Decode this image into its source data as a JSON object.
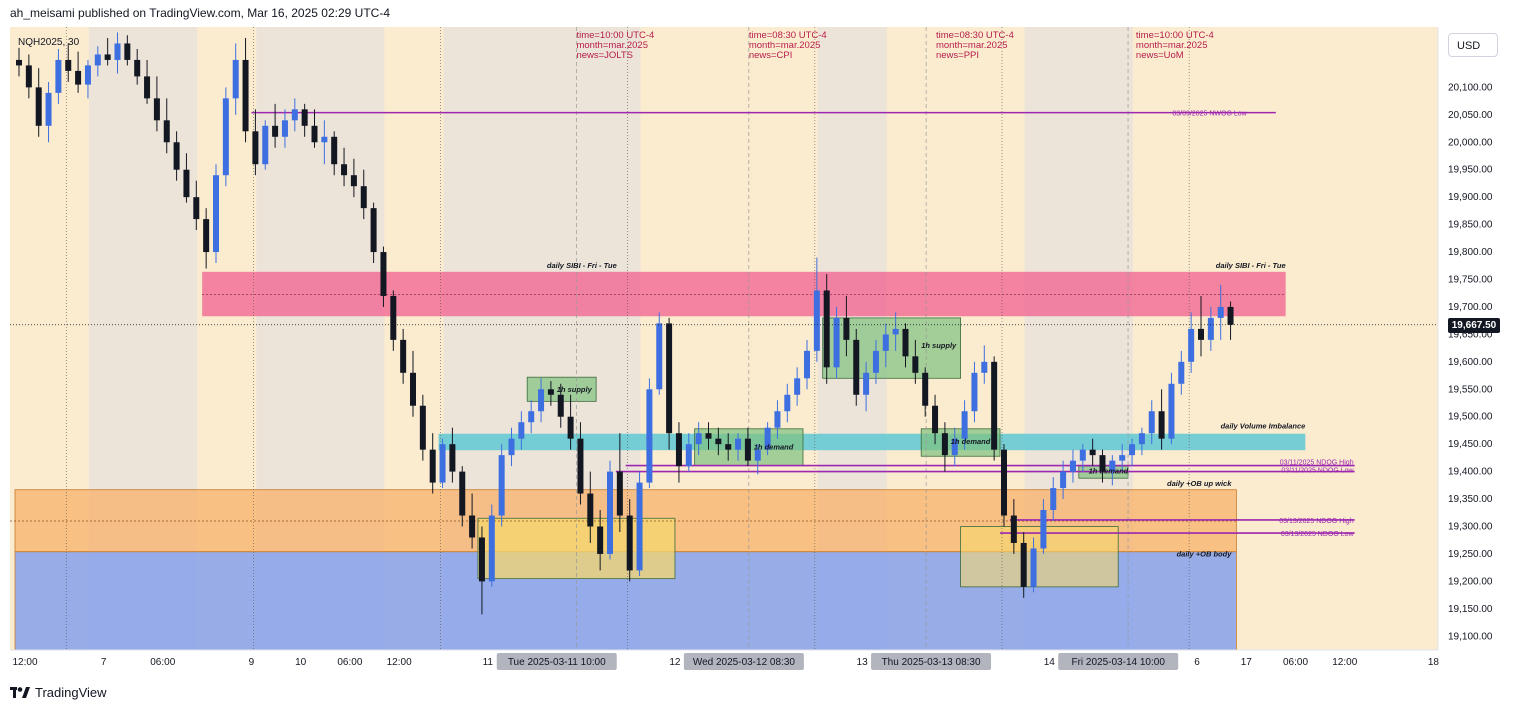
{
  "header": {
    "published": "ah_meisami published on TradingView.com, Mar 16, 2025 02:29 UTC-4"
  },
  "footer": {
    "brand": "TradingView"
  },
  "currency": "USD",
  "last_price": "19,667.50",
  "symbol": "NQH2025, 30",
  "colors": {
    "background": "#fbecd0",
    "weekend_shade": "#ebe3d9",
    "bull": "#3d6fe0",
    "bear": "#131722",
    "sibi": "#f0608f",
    "volume_imbalance": "#5ec8d3",
    "ob_wick": "#f7b26a",
    "ob_body": "#7f9ded",
    "supply_demand": "#7fc27f",
    "fvg_yellow": "#f5d76e",
    "news_text": "#b71c4b",
    "ndog": "#9c27b0"
  },
  "news": [
    {
      "time": "time=10:00 UTC-4",
      "month": "month=mar.2025",
      "news": "news=JOLTS"
    },
    {
      "time": "time=08:30 UTC-4",
      "month": "month=mar.2025",
      "news": "news=CPI"
    },
    {
      "time": "time=08:30 UTC-4",
      "month": "month=mar.2025",
      "news": "news=PPI"
    },
    {
      "time": "time=10:00 UTC-4",
      "month": "month=mar.2025",
      "news": "news=UoM"
    }
  ],
  "zone_labels": {
    "sibi_left": "daily SIBI - Fri - Tue",
    "sibi_right": "daily SIBI - Fri - Tue",
    "volume_imbalance": "daily Volume Imbalance",
    "ob_wick": "daily +OB up wick",
    "ob_body": "daily +OB body",
    "supply_1": "1h supply",
    "supply_2": "1h supply",
    "demand_1": "1h demand",
    "demand_2": "1h demand",
    "demand_3": "1h demand"
  },
  "level_labels": {
    "nwog_low": "03/09/2025 NWOG Low",
    "ndog_0311_high": "03/11/2025 NDOG High",
    "ndog_0311_low": "03/11/2025 NDOG Low",
    "ndog_0313_high": "03/13/2025 NDOG High",
    "ndog_0313_low": "03/13/2025 NDOG Low"
  },
  "chart_data": {
    "type": "candlestick",
    "symbol": "NQH2025",
    "interval": "30",
    "ylim": [
      19075,
      20210
    ],
    "y_ticks": [
      20100,
      20050,
      20000,
      19950,
      19900,
      19850,
      19800,
      19750,
      19700,
      19650,
      19600,
      19550,
      19500,
      19450,
      19400,
      19350,
      19300,
      19250,
      19200,
      19150,
      19100
    ],
    "y_tick_labels": [
      "20,100.00",
      "20,050.00",
      "20,000.00",
      "19,950.00",
      "19,900.00",
      "19,850.00",
      "19,800.00",
      "19,750.00",
      "19,700.00",
      "19,650.00",
      "19,600.00",
      "19,550.00",
      "19,500.00",
      "19,450.00",
      "19,400.00",
      "19,350.00",
      "19,300.00",
      "19,250.00",
      "19,200.00",
      "19,150.00",
      "19,100.00"
    ],
    "x_axis_labels": [
      {
        "label": "12:00",
        "t": 0
      },
      {
        "label": "7",
        "t": 9
      },
      {
        "label": "06:00",
        "t": 15
      },
      {
        "label": "9",
        "t": 24
      },
      {
        "label": "10",
        "t": 29
      },
      {
        "label": "06:00",
        "t": 34
      },
      {
        "label": "12:00",
        "t": 39
      },
      {
        "label": "11",
        "t": 48
      },
      {
        "label": "Tue 2025-03-11   10:00",
        "t": 55
      },
      {
        "label": "12",
        "t": 67
      },
      {
        "label": "Wed 2025-03-12   08:30",
        "t": 74
      },
      {
        "label": "13",
        "t": 86
      },
      {
        "label": "Thu 2025-03-13   08:30",
        "t": 93
      },
      {
        "label": "14",
        "t": 105
      },
      {
        "label": "Fri 2025-03-14   10:00",
        "t": 112
      },
      {
        "label": "6",
        "t": 120
      },
      {
        "label": "17",
        "t": 125
      },
      {
        "label": "06:00",
        "t": 130
      },
      {
        "label": "12:00",
        "t": 135
      },
      {
        "label": "18",
        "t": 144
      }
    ],
    "highlighted_dates": [
      "Tue 2025-03-11   10:00",
      "Wed 2025-03-12   08:30",
      "Thu 2025-03-13   08:30",
      "Fri 2025-03-14   10:00"
    ],
    "zones": [
      {
        "name": "sibi",
        "t0": 19,
        "t1": 129,
        "top": 19764,
        "bottom": 19683
      },
      {
        "name": "volume_imbalance",
        "t0": 43,
        "t1": 131,
        "top": 19469,
        "bottom": 19439
      },
      {
        "name": "ob_wick",
        "t0": 0,
        "t1": 124,
        "top": 19367,
        "bottom": 19254
      },
      {
        "name": "ob_body",
        "t0": 0,
        "t1": 124,
        "top": 19254,
        "bottom": 19075
      },
      {
        "name": "supply_1",
        "t0": 52,
        "t1": 59,
        "top": 19572,
        "bottom": 19528
      },
      {
        "name": "supply_2",
        "t0": 82,
        "t1": 96,
        "top": 19680,
        "bottom": 19570
      },
      {
        "name": "demand_1",
        "t0": 69,
        "t1": 80,
        "top": 19478,
        "bottom": 19411
      },
      {
        "name": "demand_2",
        "t0": 92,
        "t1": 100,
        "top": 19478,
        "bottom": 19428
      },
      {
        "name": "demand_3",
        "t0": 108,
        "t1": 113,
        "top": 19410,
        "bottom": 19388
      },
      {
        "name": "fvg_1",
        "t0": 47,
        "t1": 67,
        "top": 19315,
        "bottom": 19205
      },
      {
        "name": "fvg_2",
        "t0": 96,
        "t1": 112,
        "top": 19300,
        "bottom": 19190
      }
    ],
    "levels": [
      {
        "name": "nwog_low",
        "t0": 24,
        "t1": 128,
        "price": 20054
      },
      {
        "name": "ndog_0311_high",
        "t0": 62,
        "t1": 136,
        "price": 19411
      },
      {
        "name": "ndog_0311_low",
        "t0": 61,
        "t1": 136,
        "price": 19400
      },
      {
        "name": "ndog_0313_high",
        "t0": 101,
        "t1": 136,
        "price": 19312
      },
      {
        "name": "ndog_0313_low",
        "t0": 100,
        "t1": 136,
        "price": 19288
      }
    ],
    "current_price": 19667.5,
    "candles": [
      [
        20150,
        20172,
        20120,
        20140
      ],
      [
        20140,
        20160,
        20080,
        20100
      ],
      [
        20100,
        20135,
        20010,
        20030
      ],
      [
        20030,
        20110,
        20000,
        20090
      ],
      [
        20090,
        20170,
        20070,
        20150
      ],
      [
        20150,
        20180,
        20110,
        20130
      ],
      [
        20130,
        20165,
        20090,
        20105
      ],
      [
        20105,
        20150,
        20080,
        20140
      ],
      [
        20140,
        20175,
        20120,
        20160
      ],
      [
        20160,
        20190,
        20140,
        20150
      ],
      [
        20150,
        20200,
        20125,
        20180
      ],
      [
        20180,
        20195,
        20140,
        20150
      ],
      [
        20150,
        20170,
        20105,
        20120
      ],
      [
        20120,
        20150,
        20070,
        20080
      ],
      [
        20080,
        20120,
        20020,
        20040
      ],
      [
        20040,
        20080,
        19980,
        20000
      ],
      [
        20000,
        20020,
        19930,
        19950
      ],
      [
        19950,
        19980,
        19890,
        19900
      ],
      [
        19900,
        19930,
        19840,
        19860
      ],
      [
        19860,
        19880,
        19770,
        19800
      ],
      [
        19800,
        19960,
        19780,
        19940
      ],
      [
        19940,
        20100,
        19920,
        20080
      ],
      [
        20080,
        20180,
        20050,
        20150
      ],
      [
        20150,
        20190,
        20000,
        20020
      ],
      [
        20020,
        20060,
        19940,
        19960
      ],
      [
        19960,
        20040,
        19950,
        20030
      ],
      [
        20030,
        20070,
        19990,
        20010
      ],
      [
        20010,
        20060,
        19990,
        20040
      ],
      [
        20040,
        20080,
        20020,
        20060
      ],
      [
        20060,
        20070,
        20010,
        20030
      ],
      [
        20030,
        20060,
        19990,
        20000
      ],
      [
        20000,
        20040,
        19960,
        20010
      ],
      [
        20010,
        20020,
        19940,
        19960
      ],
      [
        19960,
        19990,
        19920,
        19940
      ],
      [
        19940,
        19970,
        19900,
        19920
      ],
      [
        19920,
        19950,
        19860,
        19880
      ],
      [
        19880,
        19890,
        19780,
        19800
      ],
      [
        19800,
        19810,
        19700,
        19720
      ],
      [
        19720,
        19730,
        19620,
        19640
      ],
      [
        19640,
        19660,
        19560,
        19580
      ],
      [
        19580,
        19620,
        19500,
        19520
      ],
      [
        19520,
        19540,
        19420,
        19440
      ],
      [
        19440,
        19470,
        19360,
        19380
      ],
      [
        19380,
        19460,
        19370,
        19450
      ],
      [
        19450,
        19480,
        19380,
        19400
      ],
      [
        19400,
        19410,
        19300,
        19320
      ],
      [
        19320,
        19360,
        19260,
        19280
      ],
      [
        19280,
        19300,
        19140,
        19200
      ],
      [
        19200,
        19340,
        19190,
        19320
      ],
      [
        19320,
        19450,
        19300,
        19430
      ],
      [
        19430,
        19480,
        19410,
        19460
      ],
      [
        19460,
        19510,
        19440,
        19490
      ],
      [
        19490,
        19530,
        19470,
        19510
      ],
      [
        19510,
        19570,
        19490,
        19550
      ],
      [
        19550,
        19565,
        19520,
        19540
      ],
      [
        19540,
        19560,
        19480,
        19500
      ],
      [
        19500,
        19540,
        19440,
        19460
      ],
      [
        19460,
        19490,
        19340,
        19360
      ],
      [
        19360,
        19400,
        19270,
        19300
      ],
      [
        19300,
        19330,
        19220,
        19250
      ],
      [
        19250,
        19420,
        19240,
        19400
      ],
      [
        19400,
        19470,
        19290,
        19320
      ],
      [
        19320,
        19350,
        19200,
        19220
      ],
      [
        19220,
        19400,
        19210,
        19380
      ],
      [
        19380,
        19570,
        19370,
        19550
      ],
      [
        19550,
        19690,
        19540,
        19670
      ],
      [
        19670,
        19680,
        19440,
        19470
      ],
      [
        19470,
        19490,
        19380,
        19410
      ],
      [
        19410,
        19470,
        19400,
        19450
      ],
      [
        19450,
        19490,
        19430,
        19470
      ],
      [
        19470,
        19490,
        19440,
        19460
      ],
      [
        19460,
        19480,
        19430,
        19450
      ],
      [
        19450,
        19470,
        19420,
        19440
      ],
      [
        19440,
        19470,
        19420,
        19460
      ],
      [
        19460,
        19480,
        19410,
        19420
      ],
      [
        19420,
        19450,
        19395,
        19440
      ],
      [
        19440,
        19490,
        19430,
        19480
      ],
      [
        19480,
        19530,
        19460,
        19510
      ],
      [
        19510,
        19560,
        19490,
        19540
      ],
      [
        19540,
        19590,
        19520,
        19570
      ],
      [
        19570,
        19640,
        19550,
        19620
      ],
      [
        19620,
        19790,
        19600,
        19730
      ],
      [
        19730,
        19760,
        19560,
        19590
      ],
      [
        19590,
        19700,
        19570,
        19680
      ],
      [
        19680,
        19720,
        19610,
        19640
      ],
      [
        19640,
        19660,
        19520,
        19540
      ],
      [
        19540,
        19600,
        19510,
        19580
      ],
      [
        19580,
        19640,
        19560,
        19620
      ],
      [
        19620,
        19670,
        19590,
        19650
      ],
      [
        19650,
        19690,
        19620,
        19660
      ],
      [
        19660,
        19670,
        19590,
        19610
      ],
      [
        19610,
        19640,
        19560,
        19580
      ],
      [
        19580,
        19590,
        19500,
        19520
      ],
      [
        19520,
        19540,
        19450,
        19470
      ],
      [
        19470,
        19490,
        19400,
        19430
      ],
      [
        19430,
        19480,
        19410,
        19460
      ],
      [
        19460,
        19530,
        19440,
        19510
      ],
      [
        19510,
        19600,
        19490,
        19580
      ],
      [
        19580,
        19630,
        19560,
        19600
      ],
      [
        19600,
        19610,
        19420,
        19440
      ],
      [
        19440,
        19450,
        19300,
        19320
      ],
      [
        19320,
        19350,
        19250,
        19270
      ],
      [
        19270,
        19290,
        19170,
        19190
      ],
      [
        19190,
        19280,
        19180,
        19260
      ],
      [
        19260,
        19350,
        19250,
        19330
      ],
      [
        19330,
        19390,
        19310,
        19370
      ],
      [
        19370,
        19420,
        19350,
        19400
      ],
      [
        19400,
        19440,
        19380,
        19420
      ],
      [
        19420,
        19450,
        19400,
        19440
      ],
      [
        19440,
        19460,
        19410,
        19430
      ],
      [
        19430,
        19440,
        19380,
        19400
      ],
      [
        19400,
        19430,
        19375,
        19420
      ],
      [
        19420,
        19450,
        19400,
        19430
      ],
      [
        19430,
        19460,
        19410,
        19450
      ],
      [
        19450,
        19480,
        19430,
        19470
      ],
      [
        19470,
        19530,
        19450,
        19510
      ],
      [
        19510,
        19550,
        19440,
        19460
      ],
      [
        19460,
        19580,
        19450,
        19560
      ],
      [
        19560,
        19620,
        19540,
        19600
      ],
      [
        19600,
        19690,
        19580,
        19660
      ],
      [
        19660,
        19720,
        19610,
        19640
      ],
      [
        19640,
        19700,
        19620,
        19680
      ],
      [
        19680,
        19740,
        19640,
        19700
      ],
      [
        19700,
        19710,
        19640,
        19667.5
      ]
    ]
  }
}
